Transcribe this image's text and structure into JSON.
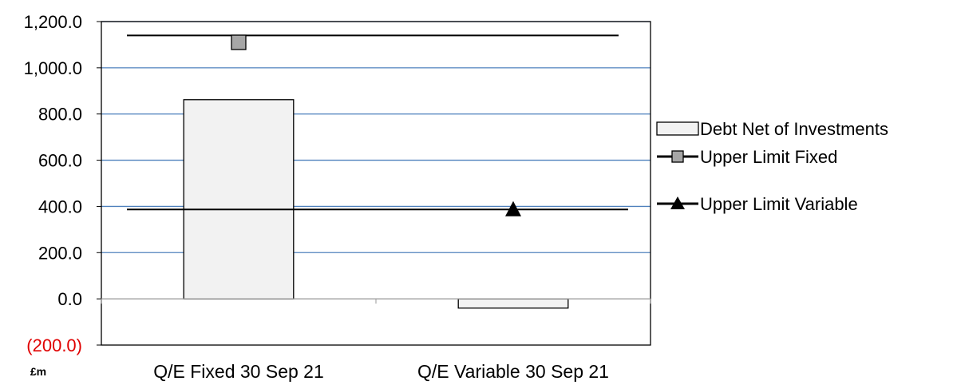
{
  "chart_data": {
    "type": "bar",
    "unit_label": "£m",
    "categories": [
      "Q/E Fixed 30 Sep 21",
      "Q/E Variable 30 Sep 21"
    ],
    "ylim": [
      -200,
      1200
    ],
    "yticks": [
      -200,
      0,
      200,
      400,
      600,
      800,
      1000,
      1200
    ],
    "ytick_labels": [
      "(200.0)",
      "0.0",
      "200.0",
      "400.0",
      "600.0",
      "800.0",
      "1,000.0",
      "1,200.0"
    ],
    "grid": true,
    "legend_position": "right",
    "series": [
      {
        "name": "Debt Net of Investments",
        "kind": "bar",
        "values": [
          862,
          -40
        ],
        "color": "#f2f2f2"
      },
      {
        "name": "Upper Limit Fixed",
        "kind": "line",
        "values": [
          1140,
          1140
        ],
        "marker": "square",
        "marker_value": 1110,
        "marker_color": "#a6a6a6"
      },
      {
        "name": "Upper Limit Variable",
        "kind": "line",
        "values": [
          387,
          387
        ],
        "marker": "triangle",
        "marker_value": 385
      }
    ],
    "colors": {
      "grid": "#4f81bd",
      "axis": "#000000",
      "negative_tick": "#e00000"
    }
  }
}
